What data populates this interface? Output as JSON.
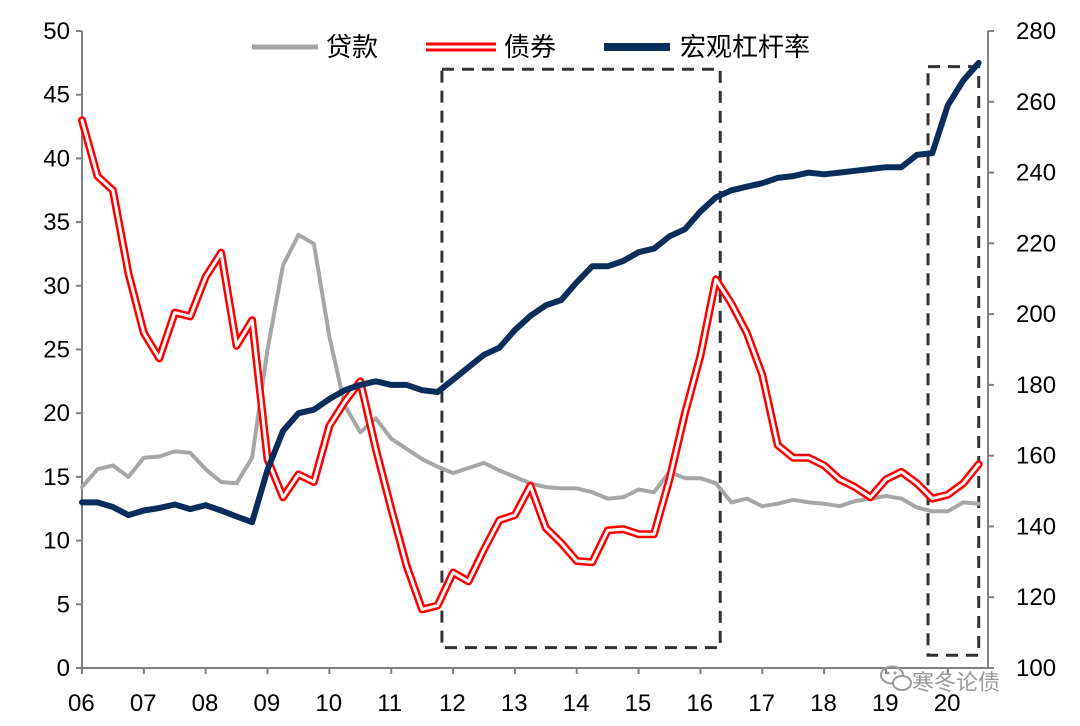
{
  "chart_data": {
    "type": "line",
    "title": "",
    "x_tick_labels": [
      "06",
      "07",
      "08",
      "09",
      "10",
      "11",
      "12",
      "13",
      "14",
      "15",
      "16",
      "17",
      "18",
      "19",
      "20"
    ],
    "left_axis": {
      "ylim": [
        0,
        50
      ],
      "ticks": [
        "0",
        "5",
        "10",
        "15",
        "20",
        "25",
        "30",
        "35",
        "40",
        "45",
        "50"
      ]
    },
    "right_axis": {
      "ylim": [
        100,
        280
      ],
      "ticks": [
        "100",
        "120",
        "140",
        "160",
        "180",
        "200",
        "220",
        "240",
        "260",
        "280"
      ]
    },
    "grid": false,
    "legend": {
      "placement": "top",
      "entries": [
        "贷款",
        "债券",
        "宏观杠杆率"
      ]
    },
    "series": [
      {
        "name": "贷款",
        "axis": "left",
        "color": "#a6a6a6",
        "style": "solid",
        "x": [
          2006.0,
          2006.25,
          2006.5,
          2006.75,
          2007.0,
          2007.25,
          2007.5,
          2007.75,
          2008.0,
          2008.25,
          2008.5,
          2008.75,
          2009.0,
          2009.25,
          2009.5,
          2009.75,
          2010.0,
          2010.25,
          2010.5,
          2010.75,
          2011.0,
          2011.25,
          2011.5,
          2011.75,
          2012.0,
          2012.25,
          2012.5,
          2012.75,
          2013.0,
          2013.25,
          2013.5,
          2013.75,
          2014.0,
          2014.25,
          2014.5,
          2014.75,
          2015.0,
          2015.25,
          2015.5,
          2015.75,
          2016.0,
          2016.25,
          2016.5,
          2016.75,
          2017.0,
          2017.25,
          2017.5,
          2017.75,
          2018.0,
          2018.25,
          2018.5,
          2018.75,
          2019.0,
          2019.25,
          2019.5,
          2019.75,
          2020.0,
          2020.25,
          2020.5
        ],
        "values": [
          14.2,
          15.6,
          15.9,
          15.0,
          16.5,
          16.6,
          17.0,
          16.9,
          15.6,
          14.6,
          14.5,
          16.5,
          25.0,
          31.6,
          34.0,
          33.3,
          26.0,
          20.6,
          18.5,
          19.6,
          18.0,
          17.2,
          16.4,
          15.8,
          15.3,
          15.7,
          16.1,
          15.5,
          15.0,
          14.5,
          14.2,
          14.1,
          14.1,
          13.8,
          13.3,
          13.4,
          14.0,
          13.8,
          15.4,
          14.9,
          14.9,
          14.5,
          13.0,
          13.3,
          12.7,
          12.9,
          13.2,
          13.0,
          12.9,
          12.7,
          13.1,
          13.3,
          13.5,
          13.3,
          12.6,
          12.3,
          12.3,
          13.0,
          12.9
        ]
      },
      {
        "name": "债券",
        "axis": "left",
        "color": "#ff0000",
        "style": "double",
        "x": [
          2006.0,
          2006.25,
          2006.5,
          2006.75,
          2007.0,
          2007.25,
          2007.5,
          2007.75,
          2008.0,
          2008.25,
          2008.5,
          2008.75,
          2009.0,
          2009.25,
          2009.5,
          2009.75,
          2010.0,
          2010.25,
          2010.5,
          2010.75,
          2011.0,
          2011.25,
          2011.5,
          2011.75,
          2012.0,
          2012.25,
          2012.5,
          2012.75,
          2013.0,
          2013.25,
          2013.5,
          2013.75,
          2014.0,
          2014.25,
          2014.5,
          2014.75,
          2015.0,
          2015.25,
          2015.5,
          2015.75,
          2016.0,
          2016.25,
          2016.5,
          2016.75,
          2017.0,
          2017.25,
          2017.5,
          2017.75,
          2018.0,
          2018.25,
          2018.5,
          2018.75,
          2019.0,
          2019.25,
          2019.5,
          2019.75,
          2020.0,
          2020.25,
          2020.5
        ],
        "values": [
          43.0,
          38.6,
          37.5,
          31.0,
          26.3,
          24.3,
          27.9,
          27.6,
          30.7,
          32.6,
          25.3,
          27.3,
          16.4,
          13.4,
          15.2,
          14.6,
          19.0,
          20.9,
          22.5,
          17.2,
          12.5,
          8.0,
          4.6,
          4.9,
          7.5,
          6.8,
          9.3,
          11.6,
          12.0,
          14.3,
          11.0,
          9.8,
          8.4,
          8.3,
          10.8,
          10.9,
          10.5,
          10.5,
          14.8,
          20.0,
          24.5,
          30.5,
          28.6,
          26.3,
          23.0,
          17.5,
          16.5,
          16.5,
          15.9,
          14.8,
          14.2,
          13.4,
          14.8,
          15.4,
          14.5,
          13.3,
          13.6,
          14.5,
          16.0
        ]
      },
      {
        "name": "宏观杠杆率",
        "axis": "right",
        "color": "#0b2d5b",
        "style": "thick",
        "x": [
          2006.0,
          2006.25,
          2006.5,
          2006.75,
          2007.0,
          2007.25,
          2007.5,
          2007.75,
          2008.0,
          2008.25,
          2008.5,
          2008.75,
          2009.0,
          2009.25,
          2009.5,
          2009.75,
          2010.0,
          2010.25,
          2010.5,
          2010.75,
          2011.0,
          2011.25,
          2011.5,
          2011.75,
          2012.0,
          2012.25,
          2012.5,
          2012.75,
          2013.0,
          2013.25,
          2013.5,
          2013.75,
          2014.0,
          2014.25,
          2014.5,
          2014.75,
          2015.0,
          2015.25,
          2015.5,
          2015.75,
          2016.0,
          2016.25,
          2016.5,
          2016.75,
          2017.0,
          2017.25,
          2017.5,
          2017.75,
          2018.0,
          2018.25,
          2018.5,
          2018.75,
          2019.0,
          2019.25,
          2019.5,
          2019.75,
          2020.0,
          2020.25,
          2020.5
        ],
        "values": [
          146.8,
          146.8,
          145.5,
          143.2,
          144.5,
          145.2,
          146.2,
          144.9,
          146.0,
          144.5,
          142.8,
          141.2,
          156.0,
          167.0,
          172.0,
          173.0,
          176.0,
          178.5,
          180.0,
          181.0,
          180.0,
          180.0,
          178.5,
          178.0,
          181.5,
          185.0,
          188.5,
          190.5,
          195.5,
          199.5,
          202.5,
          204.0,
          209.0,
          213.5,
          213.5,
          215.0,
          217.5,
          218.5,
          222.0,
          224.0,
          229.0,
          233.0,
          235.0,
          236.0,
          237.0,
          238.5,
          239.0,
          240.0,
          239.5,
          240.0,
          240.5,
          241.0,
          241.5,
          241.5,
          245.0,
          245.5,
          259.0,
          266.0,
          271.0
        ]
      }
    ],
    "highlight_boxes": [
      {
        "x_from": 2011.82,
        "x_to": 2016.32,
        "y_from": 1.6,
        "y_to": 47.0
      },
      {
        "x_from": 2019.68,
        "x_to": 2020.5,
        "y_from": 1.0,
        "y_to": 47.2
      }
    ]
  },
  "watermark": {
    "text": "寒冬论债"
  }
}
